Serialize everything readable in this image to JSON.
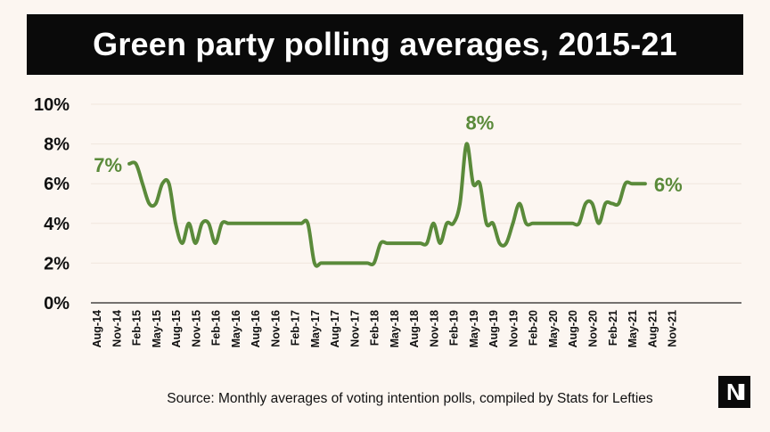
{
  "header": {
    "title": "Green party polling averages, 2015-21"
  },
  "footer": {
    "source": "Source: Monthly averages of voting intention polls, compiled by Stats for Lefties",
    "logo_text": "NI"
  },
  "colors": {
    "line": "#5a8a3a",
    "title_bg": "#0a0a0a",
    "background": "#fcf6f1",
    "grid": "#f0e6dd"
  },
  "chart_data": {
    "type": "line",
    "title": "Green party polling averages, 2015-21",
    "xlabel": "",
    "ylabel": "",
    "ylim": [
      0,
      10
    ],
    "grid": true,
    "y_ticks": [
      "0%",
      "2%",
      "4%",
      "6%",
      "8%",
      "10%"
    ],
    "x_tick_labels": [
      "Aug-14",
      "Nov-14",
      "Feb-15",
      "May-15",
      "Aug-15",
      "Nov-15",
      "Feb-16",
      "May-16",
      "Aug-16",
      "Nov-16",
      "Feb-17",
      "May-17",
      "Aug-17",
      "Nov-17",
      "Feb-18",
      "May-18",
      "Aug-18",
      "Nov-18",
      "Feb-19",
      "May-19",
      "Aug-19",
      "Nov-19",
      "Feb-20",
      "May-20",
      "Aug-20",
      "Nov-20",
      "Feb-21",
      "May-21",
      "Aug-21",
      "Nov-21"
    ],
    "annotations": [
      {
        "text": "7%",
        "x": "Jan-15",
        "y": 7
      },
      {
        "text": "8%",
        "x": "Jun-19",
        "y": 8
      },
      {
        "text": "6%",
        "x": "Jul-21",
        "y": 6
      }
    ],
    "series": [
      {
        "x": [
          "Jan-15",
          "Feb-15",
          "Mar-15",
          "Apr-15",
          "May-15",
          "Jun-15",
          "Jul-15",
          "Aug-15",
          "Sep-15",
          "Oct-15",
          "Nov-15",
          "Dec-15",
          "Jan-16",
          "Feb-16",
          "Mar-16",
          "Apr-16",
          "May-16",
          "Jun-16",
          "Jul-16",
          "Aug-16",
          "Sep-16",
          "Oct-16",
          "Nov-16",
          "Dec-16",
          "Jan-17",
          "Feb-17",
          "Mar-17",
          "Apr-17",
          "May-17",
          "Jun-17",
          "Jul-17",
          "Aug-17",
          "Sep-17",
          "Oct-17",
          "Nov-17",
          "Dec-17",
          "Jan-18",
          "Feb-18",
          "Mar-18",
          "Apr-18",
          "May-18",
          "Jun-18",
          "Jul-18",
          "Aug-18",
          "Sep-18",
          "Oct-18",
          "Nov-18",
          "Dec-18",
          "Jan-19",
          "Feb-19",
          "Mar-19",
          "Apr-19",
          "May-19",
          "Jun-19",
          "Jul-19",
          "Aug-19",
          "Sep-19",
          "Oct-19",
          "Nov-19",
          "Dec-19",
          "Jan-20",
          "Feb-20",
          "Mar-20",
          "Apr-20",
          "May-20",
          "Jun-20",
          "Jul-20",
          "Aug-20",
          "Sep-20",
          "Oct-20",
          "Nov-20",
          "Dec-20",
          "Jan-21",
          "Feb-21",
          "Mar-21",
          "Apr-21",
          "May-21",
          "Jun-21",
          "Jul-21"
        ],
        "values": [
          7,
          7,
          6,
          5,
          5,
          6,
          6,
          4,
          3,
          4,
          3,
          4,
          4,
          3,
          4,
          4,
          4,
          4,
          4,
          4,
          4,
          4,
          4,
          4,
          4,
          4,
          4,
          4,
          2,
          2,
          2,
          2,
          2,
          2,
          2,
          2,
          2,
          2,
          3,
          3,
          3,
          3,
          3,
          3,
          3,
          3,
          4,
          3,
          4,
          4,
          5,
          8,
          6,
          6,
          4,
          4,
          3,
          3,
          4,
          5,
          4,
          4,
          4,
          4,
          4,
          4,
          4,
          4,
          4,
          5,
          5,
          4,
          5,
          5,
          5,
          6,
          6,
          6,
          6
        ]
      }
    ]
  }
}
